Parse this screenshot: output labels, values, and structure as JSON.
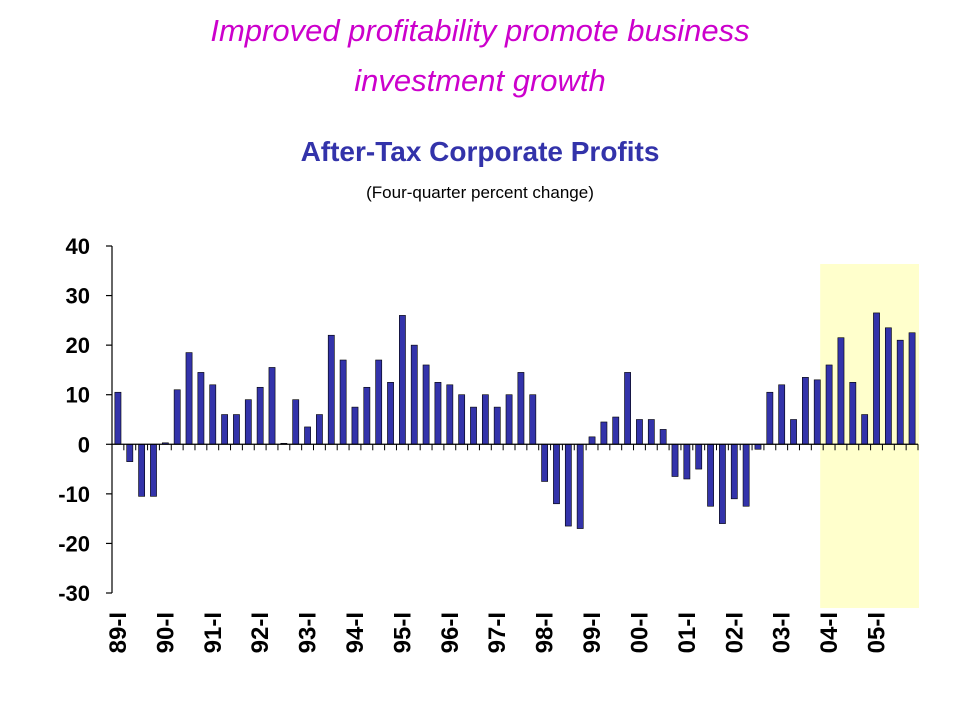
{
  "headline": {
    "line1": "Improved profitability promote business",
    "line2": "investment growth"
  },
  "colors": {
    "headline": "#cc00cc",
    "title": "#3333aa",
    "bar_fill": "#3333aa",
    "bar_edge": "#000000",
    "highlight": "#ffffcc"
  },
  "chart_data": {
    "type": "bar",
    "title": "After-Tax Corporate Profits",
    "subtitle": "(Four-quarter percent change)",
    "xlabel": "",
    "ylabel": "",
    "ylim": [
      -30,
      40
    ],
    "yticks": [
      -30,
      -20,
      -10,
      0,
      10,
      20,
      30,
      40
    ],
    "grid": false,
    "legend": "none",
    "xtick_labels": [
      "89-I",
      "90-I",
      "91-I",
      "92-I",
      "93-I",
      "94-I",
      "95-I",
      "96-I",
      "97-I",
      "98-I",
      "99-I",
      "00-I",
      "01-I",
      "02-I",
      "03-I",
      "04-I",
      "05-I"
    ],
    "highlight_range": [
      "04-I",
      "05-IV"
    ],
    "categories": [
      "89-I",
      "89-II",
      "89-III",
      "89-IV",
      "90-I",
      "90-II",
      "90-III",
      "90-IV",
      "91-I",
      "91-II",
      "91-III",
      "91-IV",
      "92-I",
      "92-II",
      "92-III",
      "92-IV",
      "93-I",
      "93-II",
      "93-III",
      "93-IV",
      "94-I",
      "94-II",
      "94-III",
      "94-IV",
      "95-I",
      "95-II",
      "95-III",
      "95-IV",
      "96-I",
      "96-II",
      "96-III",
      "96-IV",
      "97-I",
      "97-II",
      "97-III",
      "97-IV",
      "98-I",
      "98-II",
      "98-III",
      "98-IV",
      "99-I",
      "99-II",
      "99-III",
      "99-IV",
      "00-I",
      "00-II",
      "00-III",
      "00-IV",
      "01-I",
      "01-II",
      "01-III",
      "01-IV",
      "02-I",
      "02-II",
      "02-III",
      "02-IV",
      "03-I",
      "03-II",
      "03-III",
      "03-IV",
      "04-I",
      "04-II",
      "04-III",
      "04-IV",
      "05-I",
      "05-II",
      "05-III",
      "05-IV"
    ],
    "values": [
      10.5,
      -3.5,
      -10.5,
      -10.5,
      0.3,
      11,
      18.5,
      14.5,
      12,
      6,
      6,
      9,
      11.5,
      15.5,
      0.2,
      9,
      3.5,
      6,
      22,
      17,
      7.5,
      11.5,
      17,
      12.5,
      26,
      20,
      16,
      12.5,
      12,
      10,
      7.5,
      10,
      7.5,
      10,
      14.5,
      10,
      -7.5,
      -12,
      -16.5,
      -17,
      1.5,
      4.5,
      5.5,
      14.5,
      5,
      5,
      3,
      -6.5,
      -7,
      -5,
      -12.5,
      -16,
      -11,
      -12.5,
      -1,
      10.5,
      12,
      5,
      13.5,
      13,
      16,
      21.5,
      12.5,
      6,
      26.5,
      23.5,
      21,
      22.5
    ]
  }
}
